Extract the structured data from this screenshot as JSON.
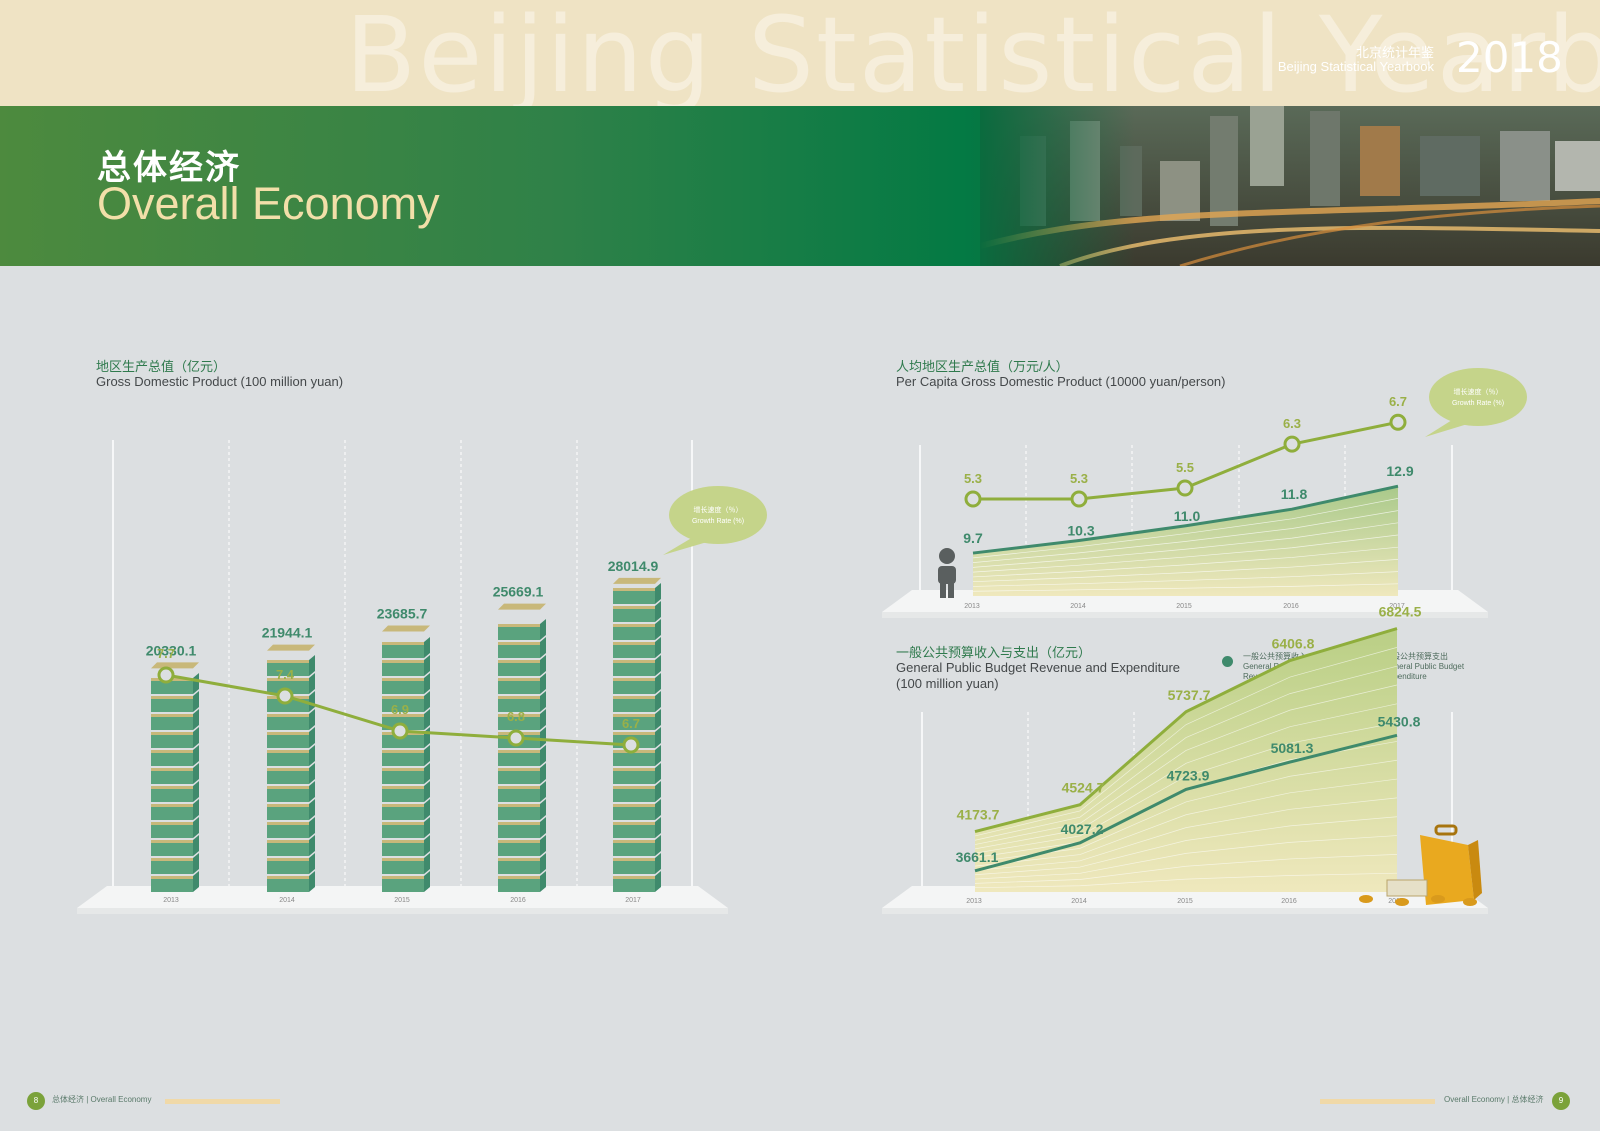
{
  "header": {
    "watermark": "Beijing Statistical Yearbook",
    "yearbook_cn": "北京统计年鉴",
    "yearbook_en": "Beijing Statistical Yearbook",
    "year": "2018"
  },
  "banner": {
    "title_cn": "总体经济",
    "title_en": "Overall Economy"
  },
  "colors": {
    "green_dark": "#3f8a6c",
    "olive": "#8fae3c",
    "bar_top": "#c8b87a",
    "cream": "#efe3c4",
    "banner_green": "#047a44"
  },
  "bubble": {
    "cn": "增长速度（％）",
    "en": "Growth Rate (%)"
  },
  "legend": {
    "revenue": {
      "cn": "一般公共预算收入",
      "en1": "General Public Budget",
      "en2": "Revenue"
    },
    "expenditure": {
      "cn": "一般公共预算支出",
      "en1": "General Public Budget",
      "en2": "Expenditure"
    }
  },
  "footer": {
    "left_page": "8",
    "left_cn": "总体经济",
    "left_sep": "|",
    "left_en": "Overall Economy",
    "right_en": "Overall Economy",
    "right_sep": "|",
    "right_cn": "总体经济",
    "right_page": "9"
  },
  "chart_data": [
    {
      "type": "bar",
      "title_cn": "地区生产总值（亿元）",
      "title": "Gross Domestic Product (100 million yuan)",
      "categories": [
        "2013",
        "2014",
        "2015",
        "2016",
        "2017"
      ],
      "series": [
        {
          "name": "Gross Domestic Product",
          "type": "bar",
          "values": [
            20330.1,
            21944.1,
            23685.7,
            25669.1,
            28014.9
          ]
        },
        {
          "name": "增长速度（％） Growth Rate (%)",
          "type": "line",
          "values": [
            7.7,
            7.4,
            6.9,
            6.8,
            6.7
          ]
        }
      ]
    },
    {
      "type": "area",
      "title_cn": "人均地区生产总值（万元/人）",
      "title": "Per Capita Gross Domestic Product (10000 yuan/person)",
      "categories": [
        "2013",
        "2014",
        "2015",
        "2016",
        "2017"
      ],
      "series": [
        {
          "name": "Per Capita Gross Domestic Product",
          "type": "area",
          "values": [
            9.7,
            10.3,
            11.0,
            11.8,
            12.9
          ]
        },
        {
          "name": "增长速度（％） Growth Rate (%)",
          "type": "line",
          "values": [
            5.3,
            5.3,
            5.5,
            6.3,
            6.7
          ]
        }
      ]
    },
    {
      "type": "area",
      "title_cn": "一般公共预算收入与支出（亿元）",
      "title_line1": "General Public Budget Revenue and Expenditure",
      "title_line2": "(100 million yuan)",
      "categories": [
        "2013",
        "2014",
        "2015",
        "2016",
        "2017"
      ],
      "series": [
        {
          "name": "General Public Budget Revenue",
          "values": [
            3661.1,
            4027.2,
            4723.9,
            5081.3,
            5430.8
          ]
        },
        {
          "name": "General Public Budget Expenditure",
          "values": [
            4173.7,
            4524.7,
            5737.7,
            6406.8,
            6824.5
          ]
        }
      ]
    }
  ]
}
